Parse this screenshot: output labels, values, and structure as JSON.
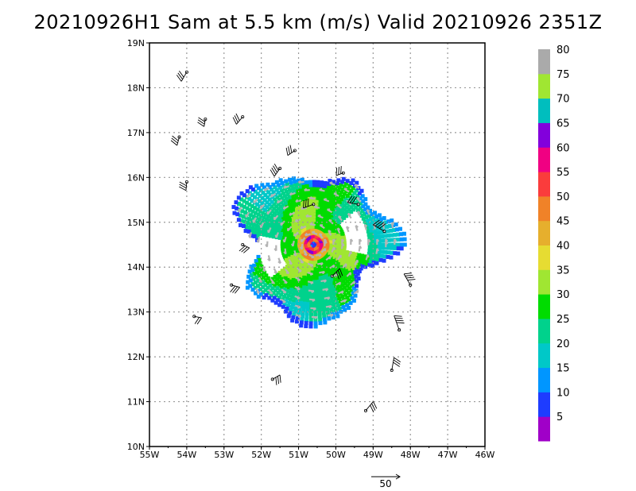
{
  "title": "20210926H1 Sam at 5.5 km (m/s) Valid 20210926  2351Z",
  "chart_data": {
    "type": "wind-speed-map",
    "title": "20210926H1 Sam at 5.5 km (m/s) Valid 20210926  2351Z",
    "x_ticks": [
      "55W",
      "54W",
      "53W",
      "52W",
      "51W",
      "50W",
      "49W",
      "48W",
      "47W",
      "46W"
    ],
    "y_ticks": [
      "19N",
      "18N",
      "17N",
      "16N",
      "15N",
      "14N",
      "13N",
      "12N",
      "11N",
      "10N"
    ],
    "xlim": [
      -55,
      -46
    ],
    "ylim": [
      10,
      19
    ],
    "grid": true,
    "storm_center": {
      "lon": -50.6,
      "lat": 14.5
    },
    "max_wind_ms": 60,
    "colorbar": {
      "labels": [
        "5",
        "10",
        "15",
        "20",
        "25",
        "30",
        "35",
        "40",
        "45",
        "50",
        "55",
        "60",
        "65",
        "70",
        "75",
        "80"
      ],
      "colors": [
        "#a000c8",
        "#1e3cff",
        "#0096ff",
        "#00c8c8",
        "#00d28c",
        "#00dc00",
        "#a0e632",
        "#e6dc32",
        "#e6af2d",
        "#f08228",
        "#fa3c3c",
        "#f00082",
        "#8200dc",
        "#00bebe",
        "#a0e632",
        "#aaaaaa"
      ]
    },
    "reference_vector_label": "50",
    "gray_color": "#b4b4b4"
  }
}
